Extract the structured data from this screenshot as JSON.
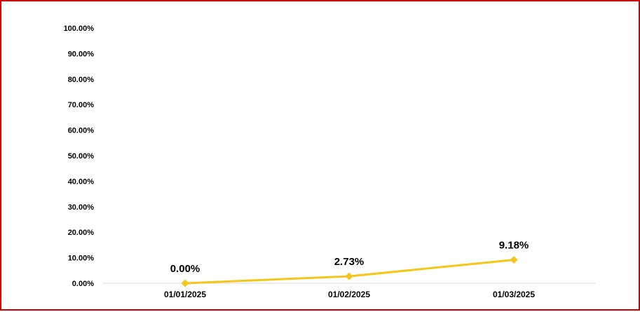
{
  "chart_data": {
    "type": "line",
    "title": "",
    "xlabel": "",
    "ylabel": "",
    "x": [
      "01/01/2025",
      "01/02/2025",
      "01/03/2025"
    ],
    "series": [
      {
        "values": [
          0.0,
          2.73,
          9.18
        ],
        "labels": [
          "0.00%",
          "2.73%",
          "9.18%"
        ],
        "color": "#f5c518",
        "marker": "diamond"
      }
    ],
    "ylim": [
      0,
      100
    ],
    "yticks": [
      "0.00%",
      "10.00%",
      "20.00%",
      "30.00%",
      "40.00%",
      "50.00%",
      "60.00%",
      "70.00%",
      "80.00%",
      "90.00%",
      "100.00%"
    ],
    "ytick_values": [
      0,
      10,
      20,
      30,
      40,
      50,
      60,
      70,
      80,
      90,
      100
    ],
    "grid": false,
    "legend": "none",
    "axis_line_color": "#d9d9d9",
    "border_color": "#d00000"
  }
}
